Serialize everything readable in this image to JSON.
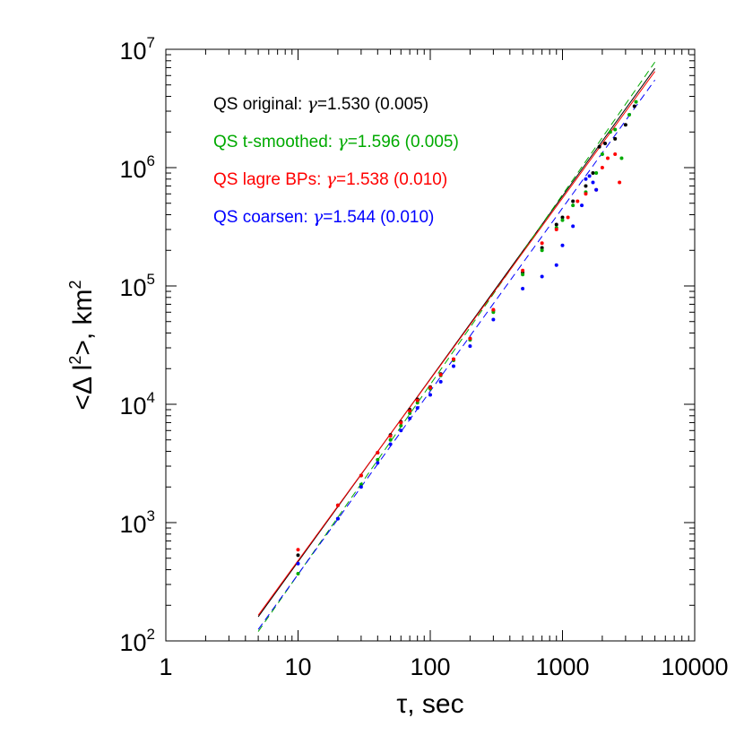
{
  "chart_data": {
    "type": "scatter",
    "xlabel": "τ, sec",
    "ylabel": "<Δ l², km²",
    "xscale": "log",
    "yscale": "log",
    "xlim": [
      1,
      10000
    ],
    "ylim": [
      100,
      10000000
    ],
    "x_ticks": [
      "1",
      "10",
      "100",
      "1000",
      "10000"
    ],
    "y_ticks": [
      {
        "base": "10",
        "exp": "2"
      },
      {
        "base": "10",
        "exp": "3"
      },
      {
        "base": "10",
        "exp": "4"
      },
      {
        "base": "10",
        "exp": "5"
      },
      {
        "base": "10",
        "exp": "6"
      },
      {
        "base": "10",
        "exp": "7"
      }
    ],
    "legend_position": "top-left",
    "series": [
      {
        "name": "QS original",
        "gamma": "1.530",
        "error": "0.005",
        "color": "#000000",
        "fit": {
          "x0": 5,
          "y0": 160,
          "x1": 5000,
          "y1": 6900000,
          "style": "solid"
        },
        "points": [
          [
            10,
            530
          ],
          [
            20,
            1400
          ],
          [
            30,
            2500
          ],
          [
            40,
            3900
          ],
          [
            50,
            5500
          ],
          [
            60,
            7100
          ],
          [
            70,
            9000
          ],
          [
            80,
            11000
          ],
          [
            100,
            14000
          ],
          [
            120,
            18000
          ],
          [
            150,
            24000
          ],
          [
            200,
            36000
          ],
          [
            300,
            62000
          ],
          [
            500,
            130000
          ],
          [
            700,
            210000
          ],
          [
            900,
            330000
          ],
          [
            1000,
            380000
          ],
          [
            1200,
            520000
          ],
          [
            1500,
            700000
          ],
          [
            1700,
            900000
          ],
          [
            1900,
            1500000
          ],
          [
            2100,
            1600000
          ],
          [
            2500,
            1750000
          ],
          [
            3000,
            2300000
          ],
          [
            3500,
            3300000
          ]
        ]
      },
      {
        "name": "QS t-smoothed",
        "gamma": "1.596",
        "error": "0.005",
        "color": "#00aa00",
        "fit": {
          "x0": 5,
          "y0": 120,
          "x1": 5000,
          "y1": 7800000,
          "style": "dashed"
        },
        "points": [
          [
            10,
            370
          ],
          [
            20,
            1080
          ],
          [
            30,
            2100
          ],
          [
            40,
            3400
          ],
          [
            50,
            5000
          ],
          [
            60,
            6600
          ],
          [
            70,
            8400
          ],
          [
            80,
            10300
          ],
          [
            100,
            13500
          ],
          [
            120,
            17500
          ],
          [
            150,
            23500
          ],
          [
            200,
            35000
          ],
          [
            300,
            60000
          ],
          [
            500,
            125000
          ],
          [
            700,
            200000
          ],
          [
            900,
            310000
          ],
          [
            1000,
            360000
          ],
          [
            1200,
            480000
          ],
          [
            1500,
            620000
          ],
          [
            1800,
            900000
          ],
          [
            2000,
            1300000
          ],
          [
            2300,
            2000000
          ],
          [
            2500,
            2100000
          ],
          [
            2800,
            1200000
          ],
          [
            3200,
            2800000
          ],
          [
            3600,
            3600000
          ]
        ]
      },
      {
        "name": "QS lagre BPs",
        "gamma": "1.538",
        "error": "0.010",
        "color": "#ff0000",
        "fit": {
          "x0": 5,
          "y0": 165,
          "x1": 5000,
          "y1": 6500000,
          "style": "solid"
        },
        "points": [
          [
            10,
            590
          ],
          [
            20,
            1400
          ],
          [
            30,
            2500
          ],
          [
            40,
            3900
          ],
          [
            50,
            5400
          ],
          [
            60,
            7000
          ],
          [
            70,
            8800
          ],
          [
            80,
            10800
          ],
          [
            100,
            13800
          ],
          [
            120,
            17800
          ],
          [
            150,
            24000
          ],
          [
            200,
            36000
          ],
          [
            300,
            63000
          ],
          [
            500,
            135000
          ],
          [
            700,
            230000
          ],
          [
            900,
            300000
          ],
          [
            1100,
            380000
          ],
          [
            1300,
            520000
          ],
          [
            1500,
            600000
          ],
          [
            1800,
            650000
          ],
          [
            2000,
            1000000
          ],
          [
            2200,
            1200000
          ],
          [
            2500,
            1300000
          ],
          [
            2700,
            750000
          ]
        ]
      },
      {
        "name": "QS coarsen",
        "gamma": "1.544",
        "error": "0.010",
        "color": "#0000ff",
        "fit": {
          "x0": 5,
          "y0": 125,
          "x1": 5000,
          "y1": 5500000,
          "style": "dashed"
        },
        "points": [
          [
            10,
            450
          ],
          [
            20,
            1080
          ],
          [
            30,
            2000
          ],
          [
            40,
            3200
          ],
          [
            50,
            4600
          ],
          [
            60,
            6000
          ],
          [
            70,
            7600
          ],
          [
            80,
            9300
          ],
          [
            100,
            12000
          ],
          [
            120,
            15500
          ],
          [
            150,
            21000
          ],
          [
            200,
            31000
          ],
          [
            300,
            52000
          ],
          [
            500,
            95000
          ],
          [
            700,
            120000
          ],
          [
            900,
            150000
          ],
          [
            1000,
            220000
          ],
          [
            1200,
            320000
          ],
          [
            1400,
            480000
          ],
          [
            1500,
            800000
          ],
          [
            1600,
            850000
          ],
          [
            1700,
            750000
          ],
          [
            1800,
            650000
          ]
        ]
      }
    ]
  }
}
